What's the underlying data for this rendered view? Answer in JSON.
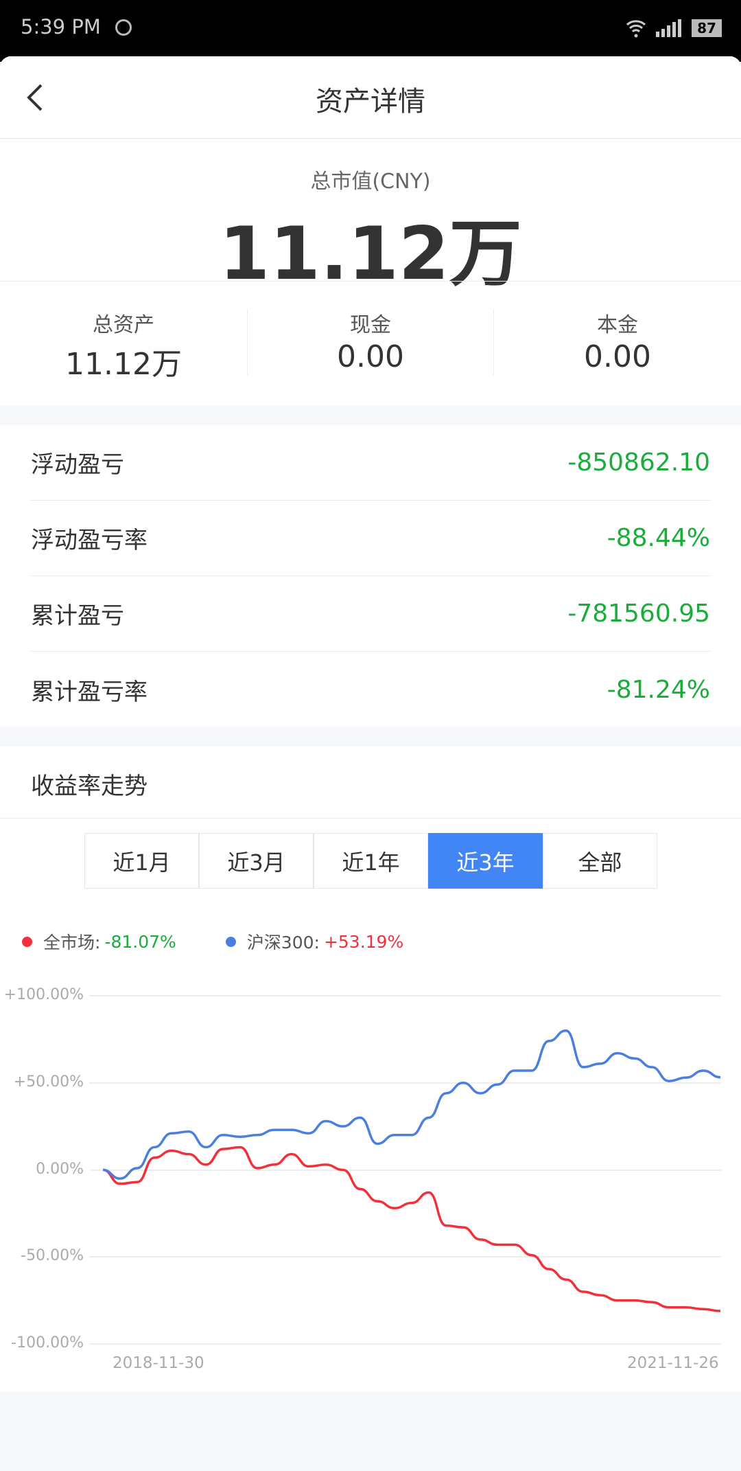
{
  "status_bar": {
    "time": "5:39 PM",
    "battery": "87",
    "icons": [
      "carrier-logo-icon",
      "wifi-icon",
      "signal-icon",
      "battery-icon"
    ]
  },
  "header": {
    "title": "资产详情",
    "back_icon": "chevron-left-icon"
  },
  "summary": {
    "label": "总市值(CNY)",
    "value": "11.12万"
  },
  "stats": [
    {
      "label": "总资产",
      "value": "11.12万"
    },
    {
      "label": "现金",
      "value": "0.00"
    },
    {
      "label": "本金",
      "value": "0.00"
    }
  ],
  "pnl": [
    {
      "label": "浮动盈亏",
      "value": "-850862.10"
    },
    {
      "label": "浮动盈亏率",
      "value": "-88.44%"
    },
    {
      "label": "累计盈亏",
      "value": "-781560.95"
    },
    {
      "label": "累计盈亏率",
      "value": "-81.24%"
    }
  ],
  "colors": {
    "loss": "#1aad3c",
    "gain": "#f2303a",
    "market": "#f2303a",
    "hs300": "#4a7fe0",
    "active_tab": "#4285f4"
  },
  "trend": {
    "title": "收益率走势",
    "tabs": [
      "近1月",
      "近3月",
      "近1年",
      "近3年",
      "全部"
    ],
    "active_tab": "近3年"
  },
  "chart_data": {
    "type": "line",
    "legend": [
      {
        "name": "全市场:",
        "value": "-81.07%"
      },
      {
        "name": "沪深300:",
        "value": "+53.19%"
      }
    ],
    "legend_placement": "top-left",
    "ylim": [
      -100,
      100
    ],
    "yticks": [
      "+100.00%",
      "+50.00%",
      "0.00%",
      "-50.00%",
      "-100.00%"
    ],
    "xticks": [
      "2018-11-30",
      "2021-11-26"
    ],
    "grid": true,
    "x": [
      "2018-11",
      "2018-12",
      "2019-01",
      "2019-02",
      "2019-03",
      "2019-04",
      "2019-05",
      "2019-06",
      "2019-07",
      "2019-08",
      "2019-09",
      "2019-10",
      "2019-11",
      "2019-12",
      "2020-01",
      "2020-02",
      "2020-03",
      "2020-04",
      "2020-05",
      "2020-06",
      "2020-07",
      "2020-08",
      "2020-09",
      "2020-10",
      "2020-11",
      "2020-12",
      "2021-01",
      "2021-02",
      "2021-03",
      "2021-04",
      "2021-05",
      "2021-06",
      "2021-07",
      "2021-08",
      "2021-09",
      "2021-10",
      "2021-11"
    ],
    "series": [
      {
        "name": "全市场",
        "values": [
          0,
          -8,
          -7,
          7,
          11,
          9,
          3,
          12,
          13,
          1,
          3,
          9,
          2,
          3,
          0,
          -11,
          -18,
          -22,
          -19,
          -13,
          -32,
          -33,
          -40,
          -43,
          -43,
          -49,
          -57,
          -63,
          -70,
          -72,
          -75,
          -75,
          -76,
          -79,
          -79,
          -80,
          -81.07
        ]
      },
      {
        "name": "沪深300",
        "values": [
          0,
          -5,
          1,
          13,
          21,
          22,
          13,
          20,
          19,
          20,
          23,
          23,
          21,
          28,
          25,
          30,
          15,
          20,
          20,
          30,
          44,
          50,
          44,
          49,
          57,
          57,
          74,
          80,
          59,
          61,
          67,
          64,
          59,
          51,
          53,
          57,
          53.19
        ]
      }
    ]
  }
}
